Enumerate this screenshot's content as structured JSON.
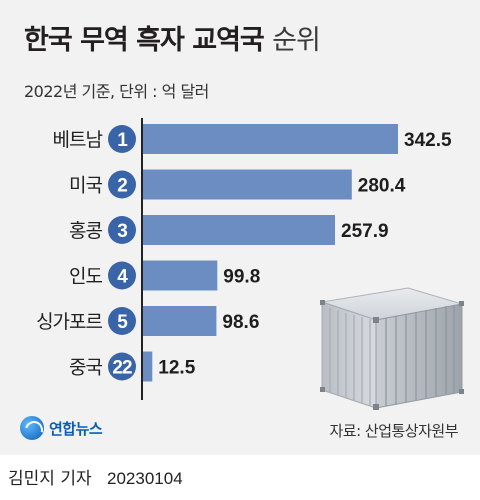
{
  "header": {
    "title_bold": "한국 무역 흑자 교역국",
    "title_light": "순위",
    "subtitle": "2022년 기준, 단위 : 억 달러"
  },
  "chart_data": {
    "type": "bar",
    "orientation": "horizontal",
    "title": "한국 무역 흑자 교역국 순위",
    "subtitle": "2022년 기준, 단위 : 억 달러",
    "categories": [
      "베트남",
      "미국",
      "홍콩",
      "인도",
      "싱가포르",
      "중국"
    ],
    "ranks": [
      "1",
      "2",
      "3",
      "4",
      "5",
      "22"
    ],
    "values": [
      342.5,
      280.4,
      257.9,
      99.8,
      98.6,
      12.5
    ],
    "value_labels": [
      "342.5",
      "280.4",
      "257.9",
      "99.8",
      "98.6",
      "12.5"
    ],
    "xlim": [
      0,
      342.5
    ],
    "grid": false,
    "legend": "none",
    "colors": {
      "bar": "#6c8dc1",
      "rank_badge": "#3a64a8",
      "axis": "#222222"
    }
  },
  "source": "자료: 산업통상자원부",
  "footer": {
    "logo_text": "연합뉴스",
    "byline": "김민지 기자",
    "date": "20230104"
  },
  "icons": {
    "container": "shipping-container-icon",
    "logo": "yonhap-logo-icon"
  }
}
